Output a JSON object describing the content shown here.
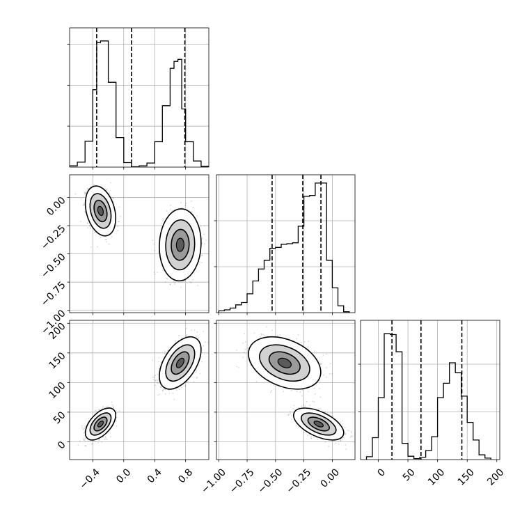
{
  "chart_data": {
    "type": "corner",
    "parameters": [
      {
        "id": "p0",
        "range": [
          -0.7,
          1.1
        ],
        "tick_values": [
          -0.4,
          0.0,
          0.4,
          0.8
        ],
        "tick_labels": [
          "−0.4",
          "0.0",
          "0.4",
          "0.8"
        ]
      },
      {
        "id": "p1",
        "range": [
          -1.02,
          0.2
        ],
        "tick_values": [
          0.0,
          -0.25,
          -0.5,
          -0.75,
          -1.0
        ],
        "tick_labels": [
          "0.00",
          "−0.25",
          "−0.50",
          "−0.75",
          "−1.00"
        ]
      },
      {
        "id": "p2",
        "range": [
          -30,
          205
        ],
        "tick_values": [
          0,
          50,
          100,
          150,
          200
        ],
        "tick_labels": [
          "0",
          "50",
          "100",
          "150",
          "200"
        ]
      }
    ],
    "grid": true,
    "histograms": [
      {
        "parameter": "p0",
        "bin_edges": [
          -0.7,
          -0.6,
          -0.5,
          -0.4,
          -0.35,
          -0.3,
          -0.2,
          -0.1,
          0.0,
          0.1,
          0.2,
          0.3,
          0.4,
          0.5,
          0.6,
          0.65,
          0.7,
          0.75,
          0.8,
          0.9,
          1.0,
          1.1
        ],
        "counts": [
          3,
          12,
          63,
          189,
          304,
          308,
          207,
          72,
          11,
          1,
          3,
          10,
          62,
          150,
          241,
          258,
          263,
          142,
          62,
          15,
          2
        ],
        "ymax": 340,
        "quantiles": [
          -0.35,
          0.1,
          0.79
        ]
      },
      {
        "parameter": "p1",
        "bin_edges": [
          -1.0,
          -0.95,
          -0.9,
          -0.85,
          -0.8,
          -0.75,
          -0.7,
          -0.65,
          -0.6,
          -0.55,
          -0.5,
          -0.45,
          -0.4,
          -0.35,
          -0.3,
          -0.25,
          -0.2,
          -0.15,
          -0.1,
          -0.05,
          0.0,
          0.05,
          0.1,
          0.15
        ],
        "counts": [
          4,
          6,
          10,
          17,
          22,
          41,
          69,
          95,
          114,
          140,
          142,
          149,
          150,
          152,
          188,
          253,
          255,
          282,
          282,
          114,
          54,
          15,
          2
        ],
        "ymax": 300,
        "quantiles": [
          -0.53,
          -0.26,
          -0.1
        ]
      },
      {
        "parameter": "p2",
        "bin_edges": [
          -20,
          -10,
          0,
          10,
          20,
          30,
          40,
          50,
          60,
          70,
          80,
          90,
          100,
          110,
          120,
          130,
          140,
          150,
          160,
          170,
          180,
          190
        ],
        "counts": [
          6,
          46,
          130,
          264,
          262,
          226,
          34,
          7,
          2,
          5,
          19,
          48,
          130,
          160,
          203,
          182,
          133,
          78,
          41,
          10,
          3
        ],
        "ymax": 292,
        "quantiles": [
          23,
          72,
          141
        ]
      }
    ],
    "clusters": [
      {
        "p0": -0.3,
        "p1": -0.12,
        "p2": 30,
        "std": [
          0.08,
          0.09,
          11
        ],
        "corr": {
          "p0_p1": -0.3,
          "p0_p2": 0.55,
          "p1_p2": -0.55
        },
        "weight": 0.5
      },
      {
        "p0": 0.73,
        "p1": -0.42,
        "p2": 133,
        "std": [
          0.11,
          0.13,
          18
        ],
        "corr": {
          "p0_p1": 0.05,
          "p0_p2": 0.5,
          "p1_p2": -0.35
        },
        "weight": 0.5
      }
    ]
  }
}
